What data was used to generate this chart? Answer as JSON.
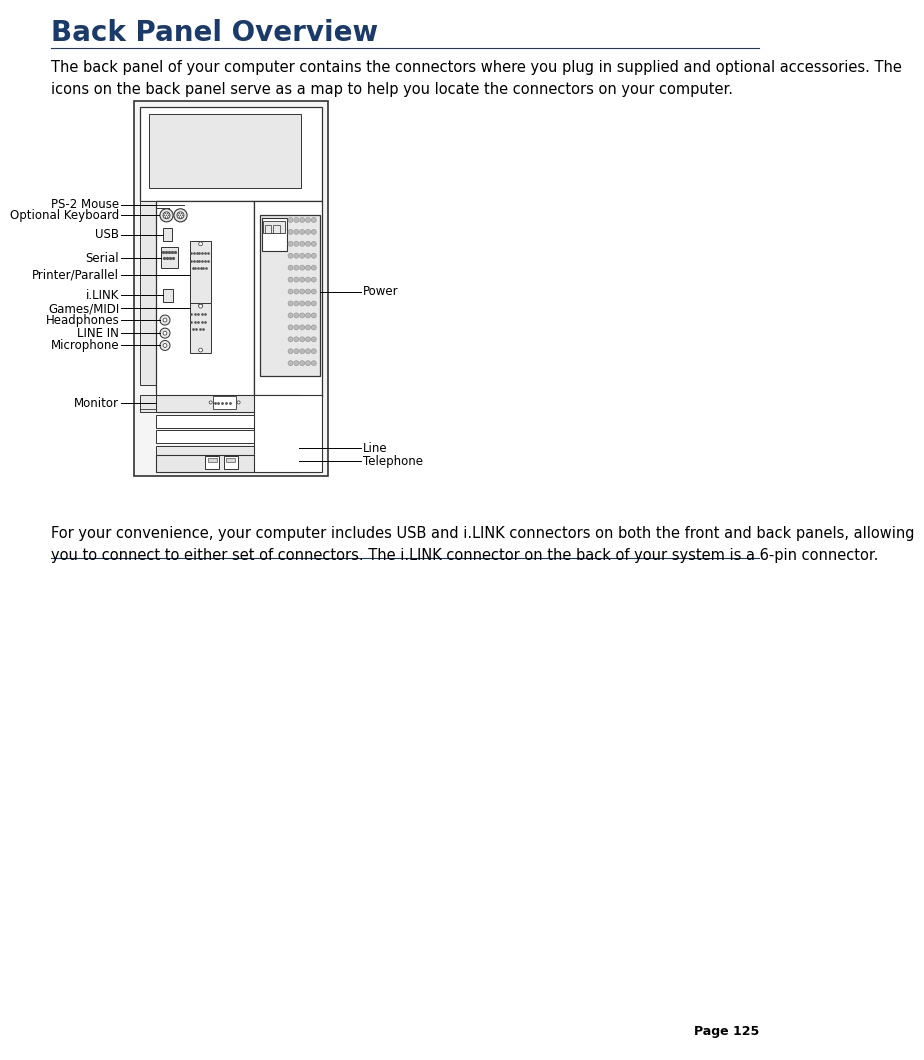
{
  "title": "Back Panel Overview",
  "title_color": "#1a3a6b",
  "title_fontsize": 20,
  "body_fontsize": 11,
  "page_number": "Page 125",
  "intro_text": "The back panel of your computer contains the connectors where you plug in supplied and optional accessories. The\nicons on the back panel serve as a map to help you locate the connectors on your computer.",
  "footer_text": "For your convenience, your computer includes USB and i.LINK connectors on both the front and back panels, allowing\nyou to connect to either set of connectors. The i.LINK connector on the back of your system is a 6-pin connector.",
  "bg_color": "#ffffff",
  "title_line_color": "#1a3a6b",
  "footer_line_color": "#1a3a6b",
  "diagram_color": "#333333",
  "fill_light": "#f5f5f5",
  "fill_mid": "#e8e8e8",
  "fill_dark": "#d8d8d8"
}
